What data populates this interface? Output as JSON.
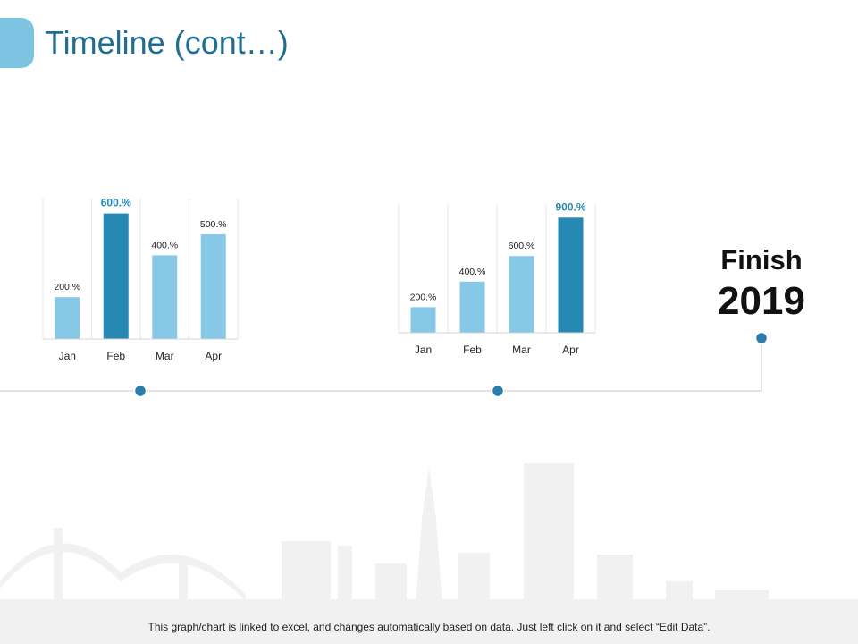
{
  "header": {
    "title": "Timeline (cont…)"
  },
  "colors": {
    "title": "#1f6e8f",
    "accent": "#7cc4e2",
    "bar_light": "#86c8e6",
    "bar_highlight": "#2589b4",
    "timeline_line": "#d9d9d9",
    "timeline_dot": "#2a7eae"
  },
  "chart_data": [
    {
      "type": "bar",
      "categories": [
        "Jan",
        "Feb",
        "Mar",
        "Apr"
      ],
      "values": [
        200,
        600,
        400,
        500
      ],
      "data_labels": [
        "200.%",
        "600.%",
        "400.%",
        "500.%"
      ],
      "highlight_index": 1,
      "ylim": [
        0,
        1000
      ],
      "grid": "vertical"
    },
    {
      "type": "bar",
      "categories": [
        "Jan",
        "Feb",
        "Mar",
        "Apr"
      ],
      "values": [
        200,
        400,
        600,
        900
      ],
      "data_labels": [
        "200.%",
        "400.%",
        "600.%",
        "900.%"
      ],
      "highlight_index": 3,
      "ylim": [
        0,
        1000
      ],
      "grid": "vertical"
    }
  ],
  "finish": {
    "label": "Finish",
    "year": "2019"
  },
  "footer": {
    "note": "This graph/chart is linked to excel, and changes automatically based on data. Just left click on it and select “Edit Data”."
  }
}
